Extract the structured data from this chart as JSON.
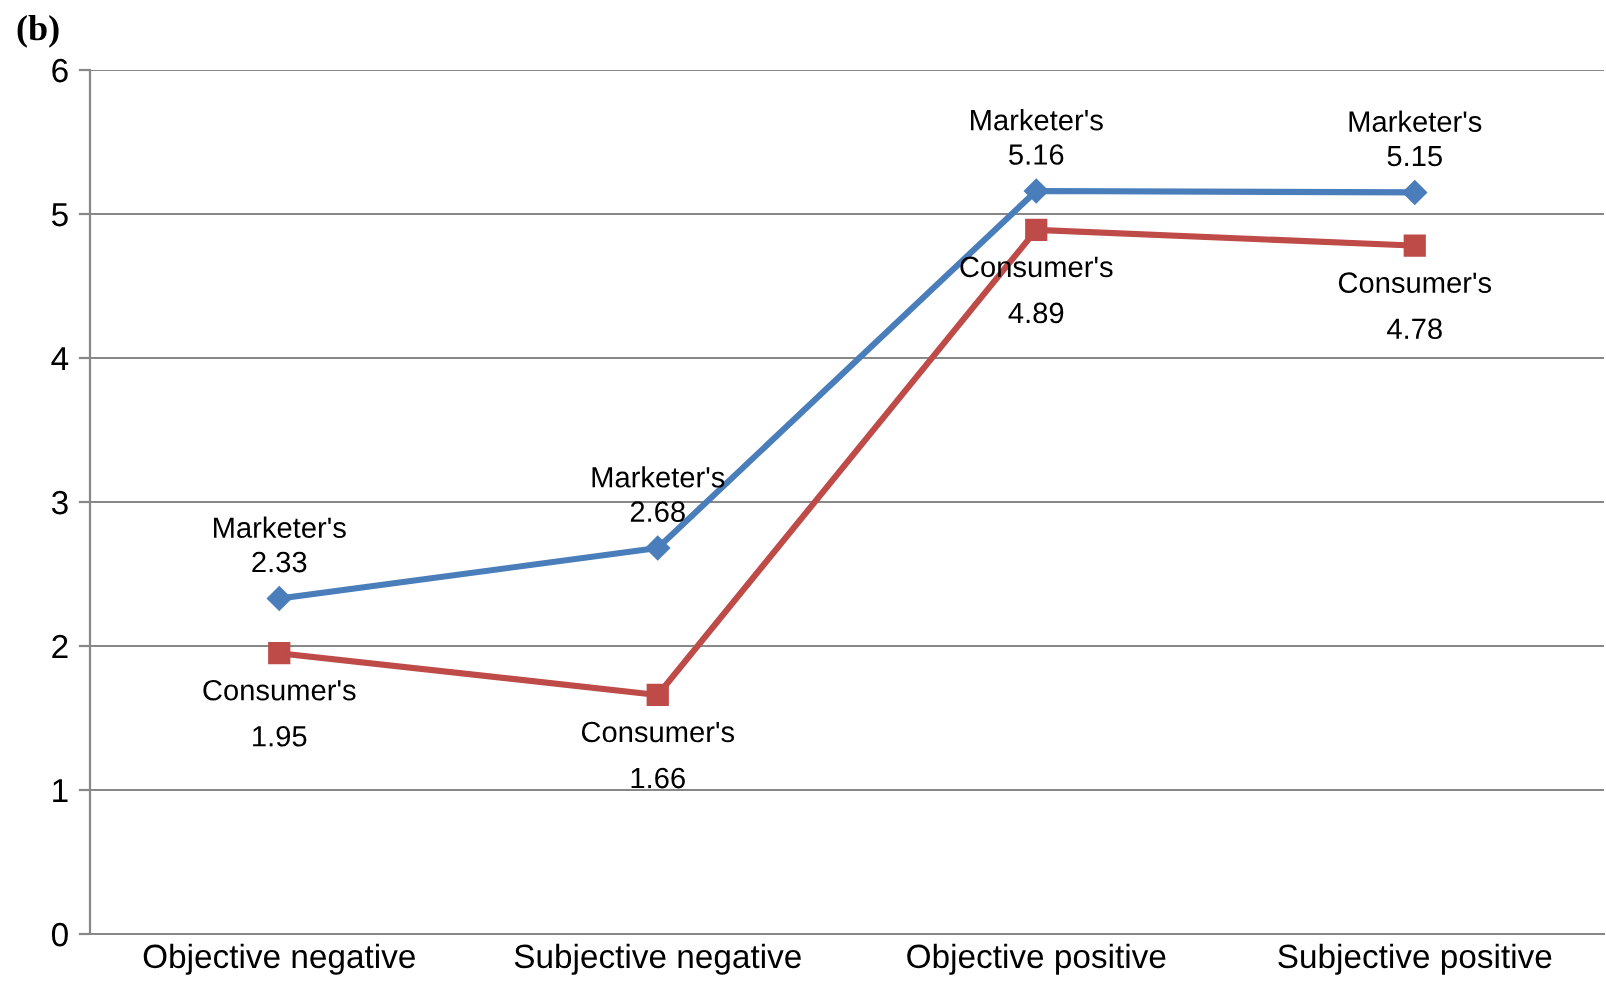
{
  "chart_data": {
    "type": "line",
    "title": "(b)",
    "categories": [
      "Objective negative",
      "Subjective negative",
      "Objective positive",
      "Subjective positive"
    ],
    "series": [
      {
        "name": "Marketer's",
        "color": "#4a7ebb",
        "marker": "diamond",
        "values": [
          2.33,
          2.68,
          5.16,
          5.15
        ]
      },
      {
        "name": "Consumer's",
        "color": "#be4b48",
        "marker": "square",
        "values": [
          1.95,
          1.66,
          4.89,
          4.78
        ]
      }
    ],
    "ylim": [
      0,
      6
    ],
    "yticks": [
      0,
      1,
      2,
      3,
      4,
      5,
      6
    ],
    "grid": "y",
    "legend": false,
    "data_labels": true,
    "line_style": "solid"
  }
}
